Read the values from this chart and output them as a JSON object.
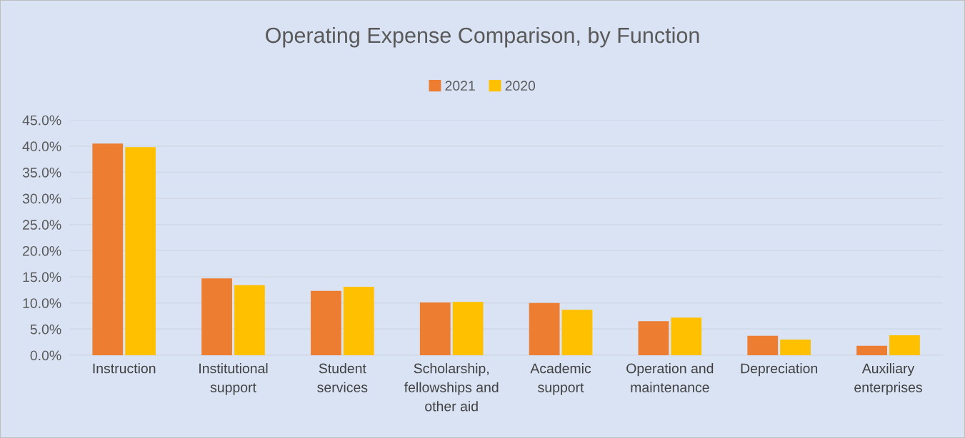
{
  "chart_data": {
    "type": "bar",
    "title": "Operating Expense Comparison, by Function",
    "categories": [
      "Instruction",
      "Institutional support",
      "Student services",
      "Scholarship, fellowships and other aid",
      "Academic support",
      "Operation and maintenance",
      "Depreciation",
      "Auxiliary enterprises"
    ],
    "series": [
      {
        "name": "2021",
        "color": "#ed7d31",
        "values": [
          40.5,
          14.7,
          12.3,
          10.1,
          10.0,
          6.5,
          3.7,
          1.8
        ]
      },
      {
        "name": "2020",
        "color": "#ffc000",
        "values": [
          39.8,
          13.4,
          13.1,
          10.2,
          8.7,
          7.2,
          3.0,
          3.8
        ]
      }
    ],
    "ylim": [
      0,
      45
    ],
    "yticks": [
      {
        "value": 0,
        "label": "0.0%"
      },
      {
        "value": 5,
        "label": "5.0%"
      },
      {
        "value": 10,
        "label": "10.0%"
      },
      {
        "value": 15,
        "label": "15.0%"
      },
      {
        "value": 20,
        "label": "20.0%"
      },
      {
        "value": 25,
        "label": "25.0%"
      },
      {
        "value": 30,
        "label": "30.0%"
      },
      {
        "value": 35,
        "label": "35.0%"
      },
      {
        "value": 40,
        "label": "40.0%"
      },
      {
        "value": 45,
        "label": "45.0%"
      }
    ],
    "grid": "y",
    "legend": "top"
  }
}
